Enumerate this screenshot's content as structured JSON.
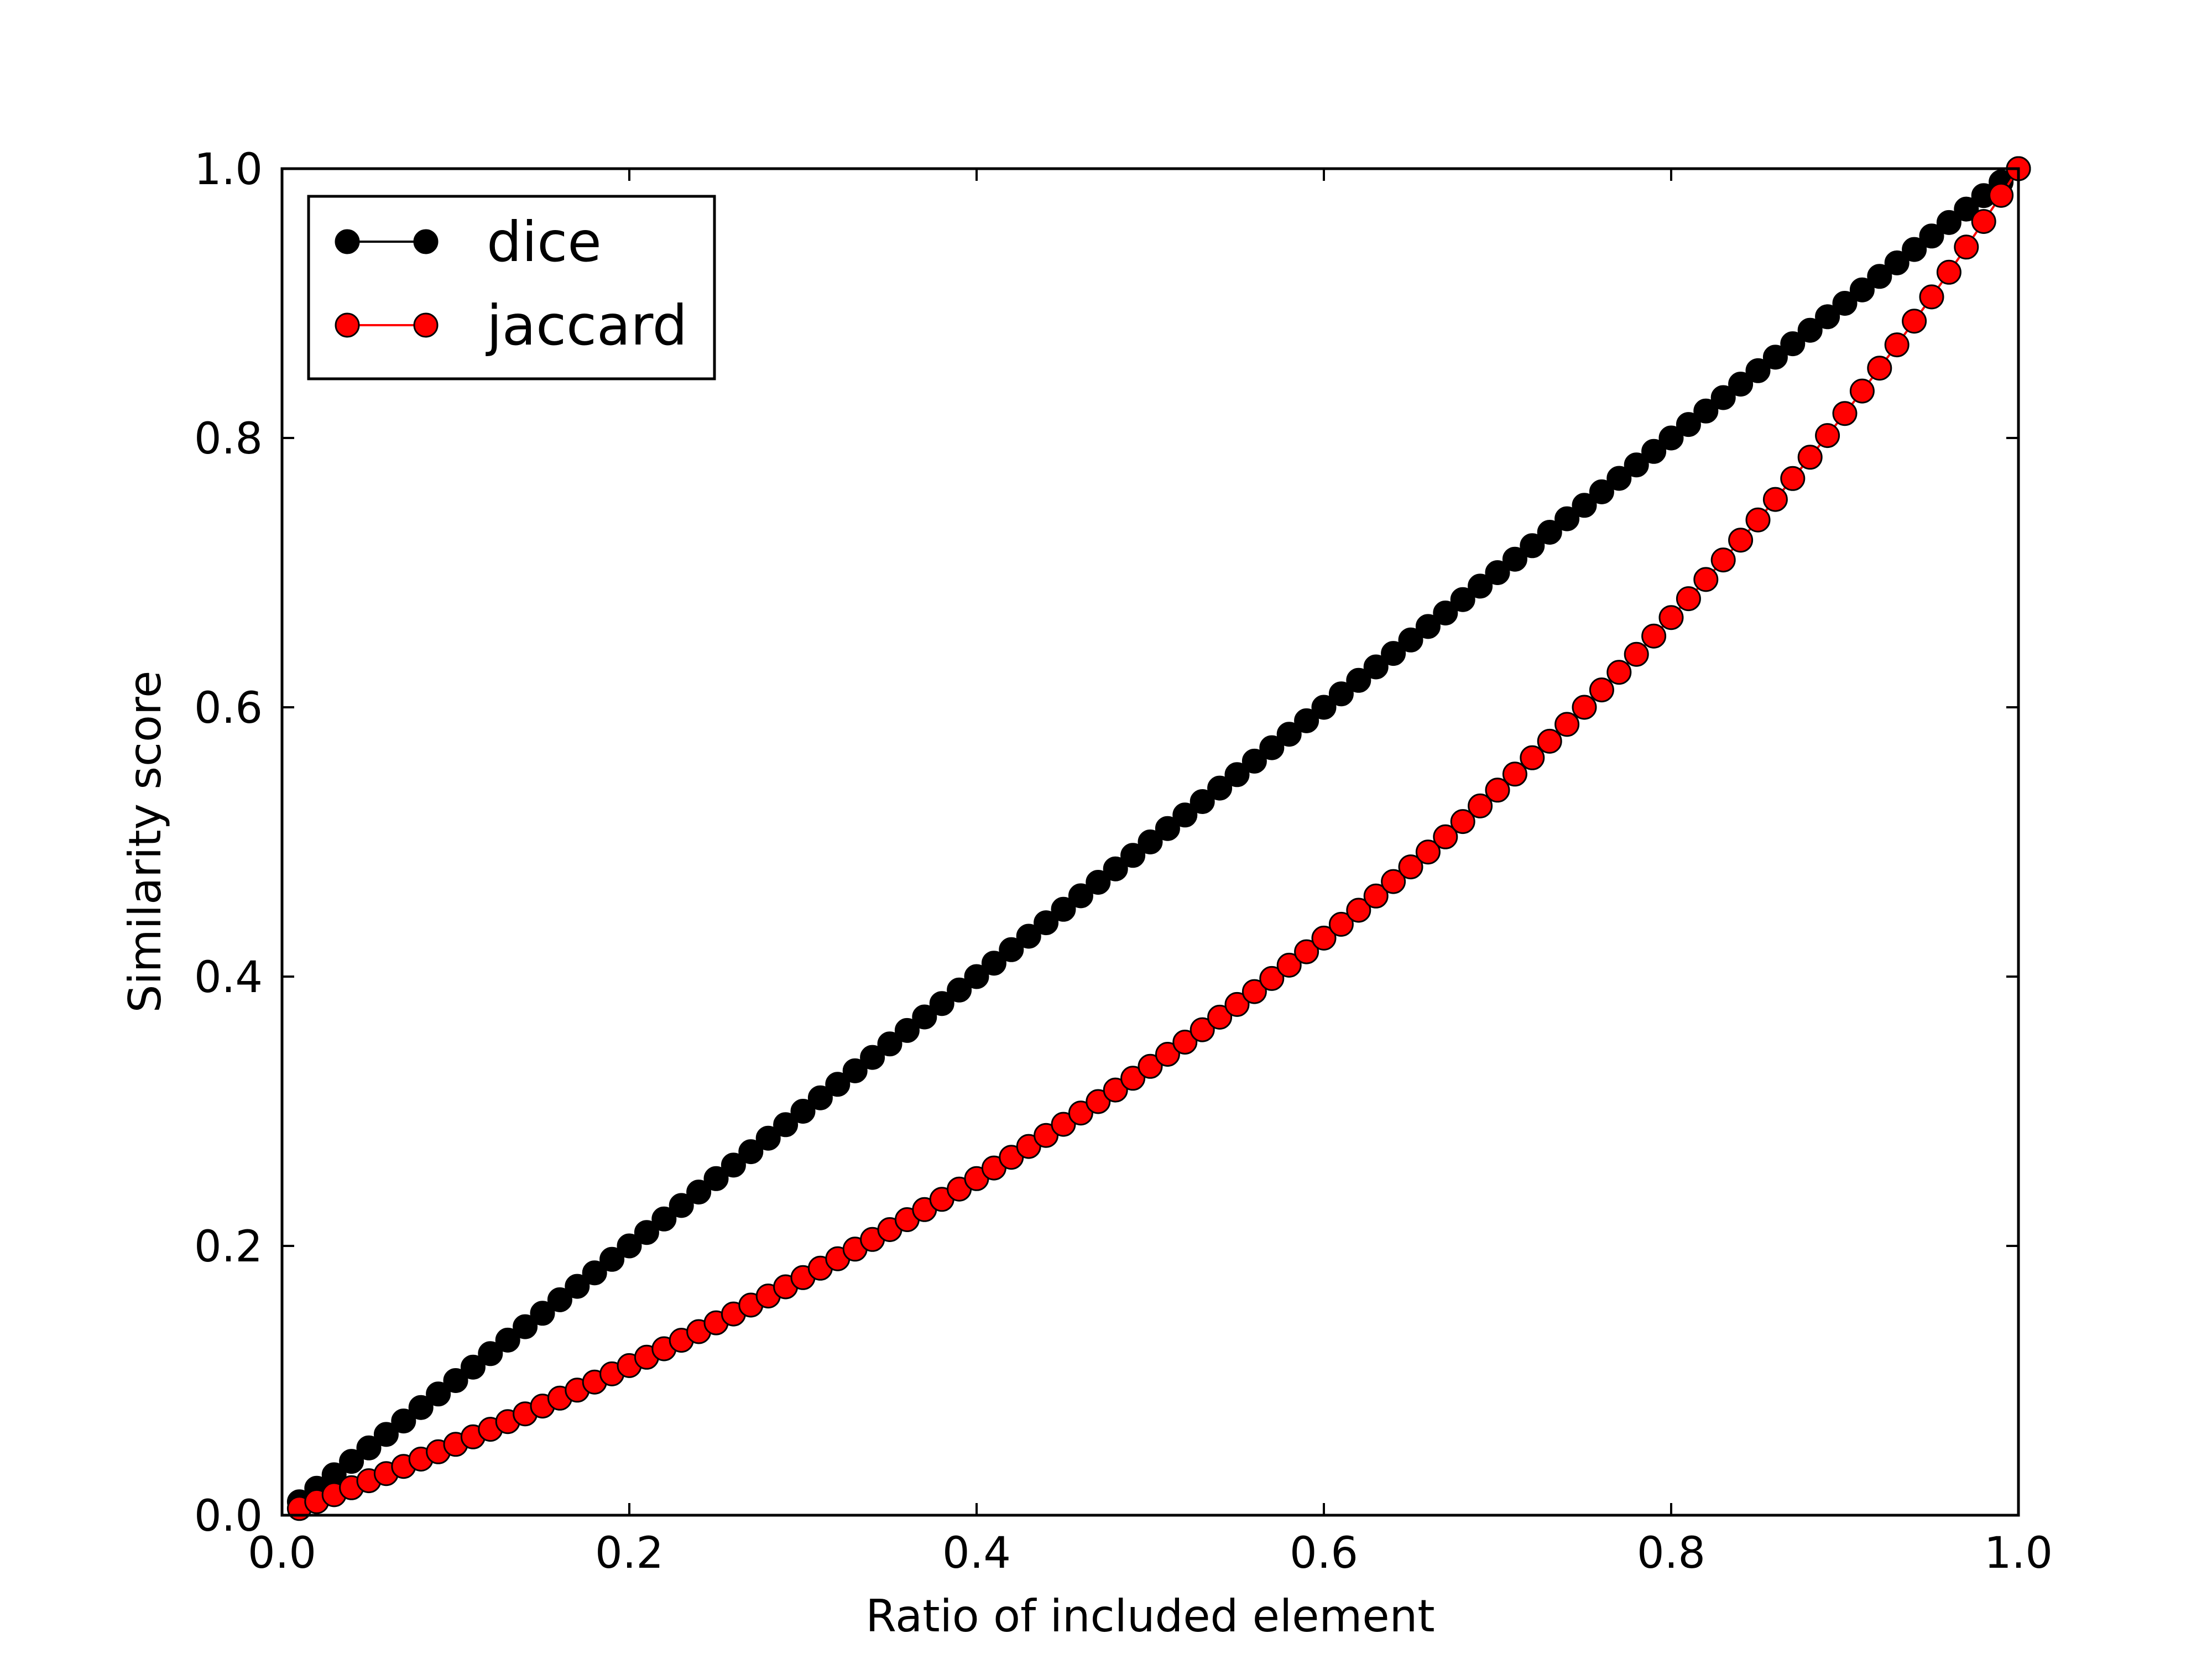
{
  "chart_data": {
    "type": "line",
    "title": "",
    "xlabel": "Ratio of included element",
    "ylabel": "Similarity score",
    "xlim": [
      0.0,
      1.0
    ],
    "ylim": [
      0.0,
      1.0
    ],
    "xticks": [
      "0.0",
      "0.2",
      "0.4",
      "0.6",
      "0.8",
      "1.0"
    ],
    "yticks": [
      "0.0",
      "0.2",
      "0.4",
      "0.6",
      "0.8",
      "1.0"
    ],
    "grid": false,
    "legend_position": "upper-left",
    "x_generation": {
      "start": 0.01,
      "stop": 1.0,
      "step": 0.01
    },
    "series": [
      {
        "name": "dice",
        "color": "#000000",
        "marker": "circle",
        "relationship": "y = x",
        "x_range": [
          0.01,
          1.0
        ],
        "y_range": [
          0.01,
          1.0
        ]
      },
      {
        "name": "jaccard",
        "color": "#ff0000",
        "marker": "circle",
        "relationship": "y = x / (2 - x)",
        "x_range": [
          0.01,
          1.0
        ],
        "y_range": [
          0.005,
          1.0
        ]
      }
    ]
  }
}
